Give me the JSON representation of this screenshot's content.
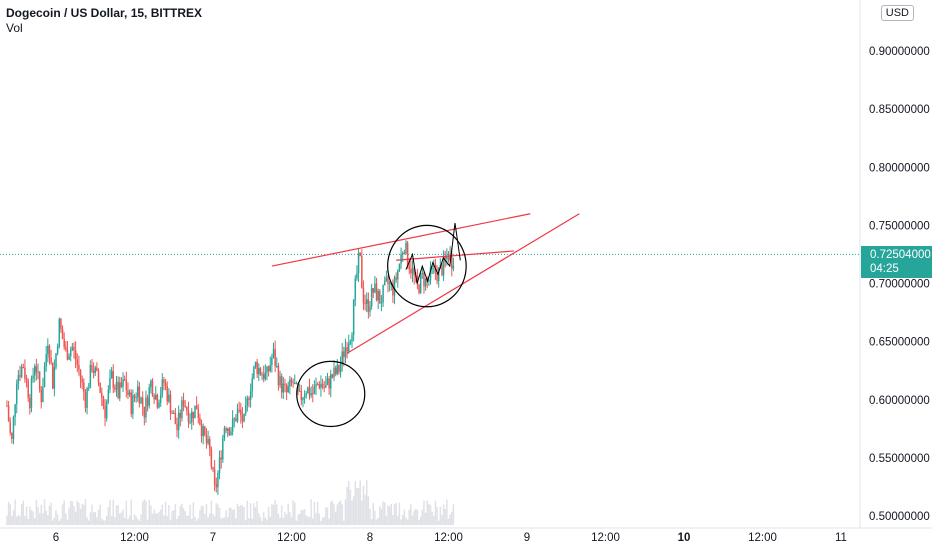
{
  "header": {
    "title": "Dogecoin / US Dollar, 15, BITTREX",
    "vol_label": "Vol"
  },
  "currency_label": "USD",
  "last_price": {
    "value": "0.72504000",
    "countdown": "04:25",
    "color": "#26a69a"
  },
  "colors": {
    "up": "#26a69a",
    "down": "#ef5350",
    "trendline": "#f23645",
    "drawing": "#000000",
    "volume": "#d1d4dc"
  },
  "chart_data": {
    "type": "candlestick",
    "title": "Dogecoin / US Dollar, 15, BITTREX",
    "ylim": [
      0.495,
      0.915
    ],
    "y_ticks": [
      "0.90000000",
      "0.85000000",
      "0.80000000",
      "0.75000000",
      "0.70000000",
      "0.65000000",
      "0.60000000",
      "0.55000000",
      "0.50000000"
    ],
    "x_range_hours": [
      -30,
      138
    ],
    "x_ticks": [
      {
        "label": "6",
        "hour": 0,
        "bold": false
      },
      {
        "label": "12:00",
        "hour": 12,
        "bold": false
      },
      {
        "label": "7",
        "hour": 24,
        "bold": false
      },
      {
        "label": "12:00",
        "hour": 36,
        "bold": false
      },
      {
        "label": "8",
        "hour": 48,
        "bold": false
      },
      {
        "label": "12:00",
        "hour": 60,
        "bold": false
      },
      {
        "label": "9",
        "hour": 72,
        "bold": false
      },
      {
        "label": "12:00",
        "hour": 84,
        "bold": false
      },
      {
        "label": "10",
        "hour": 96,
        "bold": true
      },
      {
        "label": "12:00",
        "hour": 108,
        "bold": false
      },
      {
        "label": "11",
        "hour": 120,
        "bold": false
      }
    ],
    "bar_interval_hours": 0.25,
    "first_bar_hour": -7.5,
    "price_path": [
      [
        -7.5,
        0.595
      ],
      [
        -6.8,
        0.56
      ],
      [
        -6.0,
        0.62
      ],
      [
        -5.0,
        0.63
      ],
      [
        -4.0,
        0.6
      ],
      [
        -3.2,
        0.635
      ],
      [
        -2.3,
        0.6
      ],
      [
        -1.2,
        0.655
      ],
      [
        -0.5,
        0.615
      ],
      [
        0.5,
        0.665
      ],
      [
        1.5,
        0.64
      ],
      [
        2.5,
        0.645
      ],
      [
        3.5,
        0.625
      ],
      [
        4.5,
        0.6
      ],
      [
        5.5,
        0.63
      ],
      [
        6.5,
        0.615
      ],
      [
        7.5,
        0.59
      ],
      [
        8.5,
        0.62
      ],
      [
        9.5,
        0.605
      ],
      [
        10.5,
        0.615
      ],
      [
        11.5,
        0.595
      ],
      [
        12.5,
        0.61
      ],
      [
        13.5,
        0.59
      ],
      [
        14.5,
        0.615
      ],
      [
        15.5,
        0.6
      ],
      [
        16.5,
        0.615
      ],
      [
        17.5,
        0.595
      ],
      [
        18.5,
        0.575
      ],
      [
        19.5,
        0.6
      ],
      [
        20.5,
        0.585
      ],
      [
        21.5,
        0.595
      ],
      [
        22.5,
        0.57
      ],
      [
        23.5,
        0.555
      ],
      [
        24.3,
        0.52
      ],
      [
        25.0,
        0.545
      ],
      [
        25.8,
        0.58
      ],
      [
        26.8,
        0.575
      ],
      [
        27.8,
        0.59
      ],
      [
        28.8,
        0.58
      ],
      [
        29.6,
        0.61
      ],
      [
        30.5,
        0.63
      ],
      [
        31.2,
        0.625
      ],
      [
        32.2,
        0.62
      ],
      [
        33.2,
        0.64
      ],
      [
        34.2,
        0.615
      ],
      [
        35.2,
        0.605
      ],
      [
        36.2,
        0.615
      ],
      [
        37.2,
        0.6
      ],
      [
        38.2,
        0.61
      ],
      [
        39.2,
        0.605
      ],
      [
        40.2,
        0.615
      ],
      [
        41.2,
        0.61
      ],
      [
        42.2,
        0.62
      ],
      [
        43.2,
        0.625
      ],
      [
        44.2,
        0.645
      ],
      [
        45.2,
        0.66
      ],
      [
        45.8,
        0.7
      ],
      [
        46.4,
        0.725
      ],
      [
        46.9,
        0.69
      ],
      [
        47.6,
        0.68
      ],
      [
        48.6,
        0.695
      ],
      [
        49.6,
        0.685
      ],
      [
        50.6,
        0.7
      ],
      [
        51.6,
        0.695
      ],
      [
        52.6,
        0.72
      ],
      [
        53.2,
        0.735
      ],
      [
        53.8,
        0.72
      ],
      [
        54.5,
        0.71
      ],
      [
        55.2,
        0.695
      ],
      [
        56.0,
        0.705
      ],
      [
        56.8,
        0.7
      ],
      [
        57.6,
        0.712
      ],
      [
        58.4,
        0.708
      ],
      [
        59.2,
        0.715
      ],
      [
        60.0,
        0.725
      ],
      [
        60.5,
        0.72
      ],
      [
        60.9,
        0.725
      ]
    ],
    "volume_note": "low gray volume bars along bottom",
    "annotations": {
      "trendlines": [
        {
          "from": [
            33.0,
            0.715
          ],
          "to": [
            72.5,
            0.76
          ]
        },
        {
          "from": [
            44.5,
            0.64
          ],
          "to": [
            80.0,
            0.76
          ]
        },
        {
          "from": [
            52.0,
            0.72
          ],
          "to": [
            70.0,
            0.728
          ]
        }
      ],
      "circles": [
        {
          "center": [
            42.0,
            0.605
          ],
          "rx_hours": 5.2,
          "ry": 0.028
        },
        {
          "center": [
            56.7,
            0.715
          ],
          "rx_hours": 6.0,
          "ry": 0.035
        }
      ]
    }
  }
}
